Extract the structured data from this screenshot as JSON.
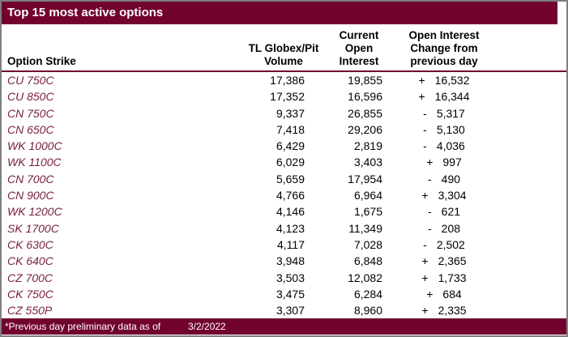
{
  "title": "Top 15 most active options",
  "colors": {
    "maroon": "#71032E",
    "strike_text": "#771F38",
    "border_gray": "#7F7F7F"
  },
  "table": {
    "headers": {
      "option_strike": "Option Strike",
      "volume": [
        "TL Globex/Pit",
        "Volume"
      ],
      "open_interest": [
        "Current",
        "Open",
        "Interest"
      ],
      "change": [
        "Open Interest",
        "Change from",
        "previous day"
      ]
    },
    "rows": [
      {
        "strike": "CU 750C",
        "volume": "17,386",
        "open_interest": "19,855",
        "change_sign": "+",
        "change_value": "16,532"
      },
      {
        "strike": "CU 850C",
        "volume": "17,352",
        "open_interest": "16,596",
        "change_sign": "+",
        "change_value": "16,344"
      },
      {
        "strike": "CN 750C",
        "volume": "9,337",
        "open_interest": "26,855",
        "change_sign": "-",
        "change_value": "5,317"
      },
      {
        "strike": "CN 650C",
        "volume": "7,418",
        "open_interest": "29,206",
        "change_sign": "-",
        "change_value": "5,130"
      },
      {
        "strike": "WK 1000C",
        "volume": "6,429",
        "open_interest": "2,819",
        "change_sign": "-",
        "change_value": "4,036"
      },
      {
        "strike": "WK 1100C",
        "volume": "6,029",
        "open_interest": "3,403",
        "change_sign": "+",
        "change_value": "997"
      },
      {
        "strike": "CN 700C",
        "volume": "5,659",
        "open_interest": "17,954",
        "change_sign": "-",
        "change_value": "490"
      },
      {
        "strike": "CN 900C",
        "volume": "4,766",
        "open_interest": "6,964",
        "change_sign": "+",
        "change_value": "3,304"
      },
      {
        "strike": "WK 1200C",
        "volume": "4,146",
        "open_interest": "1,675",
        "change_sign": "-",
        "change_value": "621"
      },
      {
        "strike": "SK 1700C",
        "volume": "4,123",
        "open_interest": "11,349",
        "change_sign": "-",
        "change_value": "208"
      },
      {
        "strike": "CK 630C",
        "volume": "4,117",
        "open_interest": "7,028",
        "change_sign": "-",
        "change_value": "2,502"
      },
      {
        "strike": "CK 640C",
        "volume": "3,948",
        "open_interest": "6,848",
        "change_sign": "+",
        "change_value": "2,365"
      },
      {
        "strike": "CZ 700C",
        "volume": "3,503",
        "open_interest": "12,082",
        "change_sign": "+",
        "change_value": "1,733"
      },
      {
        "strike": "CK 750C",
        "volume": "3,475",
        "open_interest": "6,284",
        "change_sign": "+",
        "change_value": "684"
      },
      {
        "strike": "CZ 550P",
        "volume": "3,307",
        "open_interest": "8,960",
        "change_sign": "+",
        "change_value": "2,335"
      }
    ]
  },
  "footer": {
    "note": "*Previous day preliminary data as of",
    "date": "3/2/2022"
  }
}
